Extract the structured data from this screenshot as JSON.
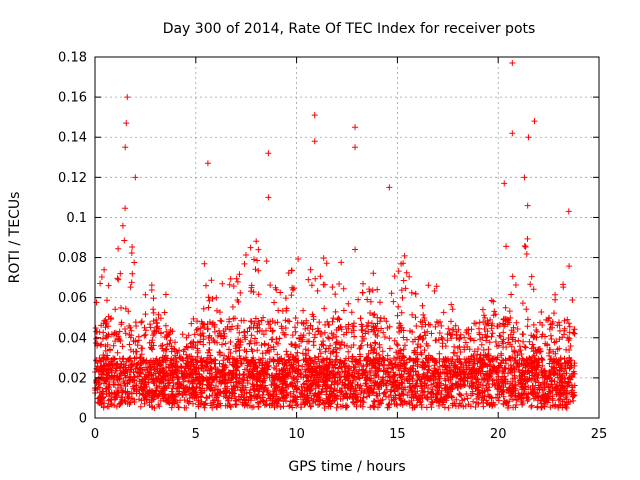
{
  "chart_data": {
    "type": "scatter",
    "title": "Day 300 of 2014, Rate Of TEC Index for receiver pots",
    "xlabel": "GPS time / hours",
    "ylabel": "ROTI / TECUs",
    "xlim": [
      0,
      25
    ],
    "ylim": [
      0,
      0.18
    ],
    "xticks": [
      0,
      5,
      10,
      15,
      20,
      25
    ],
    "xtick_labels": [
      "0",
      "5",
      "10",
      "15",
      "20",
      "25"
    ],
    "yticks": [
      0,
      0.02,
      0.04,
      0.06,
      0.08,
      0.1,
      0.12,
      0.14,
      0.16,
      0.18
    ],
    "ytick_labels": [
      "0",
      "0.02",
      "0.04",
      "0.06",
      "0.08",
      "0.1",
      "0.12",
      "0.14",
      "0.16",
      "0.18"
    ],
    "grid": true,
    "marker": "+",
    "marker_color": "#ff0000",
    "data_range_hours": [
      0,
      23.8
    ],
    "baseline_level": 0.02,
    "peaks": [
      {
        "x": 1.6,
        "y": 0.16
      },
      {
        "x": 1.55,
        "y": 0.147
      },
      {
        "x": 1.5,
        "y": 0.135
      },
      {
        "x": 2.0,
        "y": 0.12
      },
      {
        "x": 5.6,
        "y": 0.127
      },
      {
        "x": 8.6,
        "y": 0.132
      },
      {
        "x": 8.6,
        "y": 0.11
      },
      {
        "x": 10.9,
        "y": 0.151
      },
      {
        "x": 10.9,
        "y": 0.138
      },
      {
        "x": 12.9,
        "y": 0.145
      },
      {
        "x": 12.9,
        "y": 0.135
      },
      {
        "x": 14.6,
        "y": 0.115
      },
      {
        "x": 20.7,
        "y": 0.177
      },
      {
        "x": 20.7,
        "y": 0.142
      },
      {
        "x": 21.8,
        "y": 0.148
      },
      {
        "x": 21.5,
        "y": 0.14
      },
      {
        "x": 21.3,
        "y": 0.12
      },
      {
        "x": 20.3,
        "y": 0.117
      },
      {
        "x": 23.5,
        "y": 0.103
      }
    ],
    "envelope": [
      [
        0.0,
        0.07
      ],
      [
        0.5,
        0.075
      ],
      [
        1.0,
        0.09
      ],
      [
        1.5,
        0.105
      ],
      [
        2.0,
        0.09
      ],
      [
        2.5,
        0.07
      ],
      [
        3.0,
        0.07
      ],
      [
        3.5,
        0.065
      ],
      [
        4.0,
        0.03
      ],
      [
        4.5,
        0.035
      ],
      [
        5.0,
        0.045
      ],
      [
        5.5,
        0.085
      ],
      [
        6.0,
        0.06
      ],
      [
        6.5,
        0.075
      ],
      [
        7.0,
        0.07
      ],
      [
        7.5,
        0.085
      ],
      [
        8.0,
        0.09
      ],
      [
        8.5,
        0.08
      ],
      [
        9.0,
        0.075
      ],
      [
        9.5,
        0.08
      ],
      [
        10.0,
        0.08
      ],
      [
        10.5,
        0.085
      ],
      [
        11.0,
        0.095
      ],
      [
        11.5,
        0.085
      ],
      [
        12.0,
        0.09
      ],
      [
        12.5,
        0.08
      ],
      [
        13.0,
        0.095
      ],
      [
        13.5,
        0.075
      ],
      [
        14.0,
        0.08
      ],
      [
        14.5,
        0.09
      ],
      [
        15.0,
        0.075
      ],
      [
        15.5,
        0.085
      ],
      [
        16.0,
        0.07
      ],
      [
        16.5,
        0.075
      ],
      [
        17.0,
        0.065
      ],
      [
        17.5,
        0.06
      ],
      [
        18.0,
        0.05
      ],
      [
        18.5,
        0.055
      ],
      [
        19.0,
        0.05
      ],
      [
        19.5,
        0.06
      ],
      [
        20.0,
        0.075
      ],
      [
        20.5,
        0.09
      ],
      [
        21.0,
        0.1
      ],
      [
        21.5,
        0.11
      ],
      [
        22.0,
        0.085
      ],
      [
        22.5,
        0.065
      ],
      [
        23.0,
        0.06
      ],
      [
        23.5,
        0.08
      ],
      [
        23.8,
        0.05
      ]
    ]
  }
}
